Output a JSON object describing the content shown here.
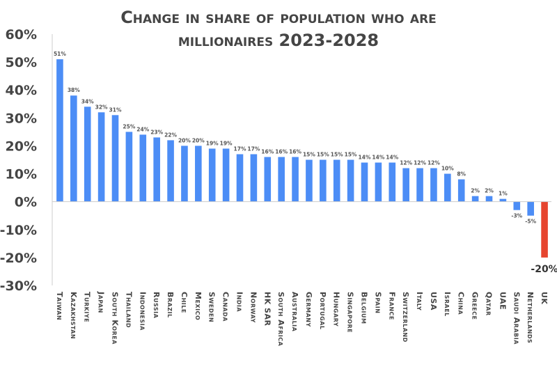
{
  "chart_data": {
    "type": "bar",
    "title_lines": [
      "Change in share of population who are",
      "millionaires 2023-2028"
    ],
    "xlabel": "",
    "ylabel": "",
    "ylim": [
      -30,
      60
    ],
    "yticks": [
      60,
      50,
      40,
      30,
      20,
      10,
      0,
      -10,
      -20,
      -30
    ],
    "ytick_labels": [
      "60%",
      "50%",
      "40%",
      "30%",
      "20%",
      "10%",
      "0%",
      "-10%",
      "-20%",
      "-30%"
    ],
    "grid": false,
    "legend": "none",
    "colors": {
      "default": "#4c8df6",
      "highlight": "#e6452f",
      "axis": "#cccccc",
      "text": "#454545"
    },
    "highlight_category": "UK",
    "categories": [
      "Taiwan",
      "Kazakhstan",
      "Turkiye",
      "Japan",
      "South Korea",
      "Thailand",
      "Indonesia",
      "Russia",
      "Brazil",
      "Chile",
      "Mexico",
      "Sweden",
      "Canada",
      "India",
      "Norway",
      "HK SAR",
      "South Africa",
      "Australia",
      "Germany",
      "Portugal",
      "Hungary",
      "Singapore",
      "Belgium",
      "Spain",
      "France",
      "Switzerland",
      "Italy",
      "USA",
      "Israel",
      "China",
      "Greece",
      "Qatar",
      "UAE",
      "Saudi Arabia",
      "Netherlands",
      "UK"
    ],
    "values": [
      51,
      38,
      34,
      32,
      31,
      25,
      24,
      23,
      22,
      20,
      20,
      19,
      19,
      17,
      17,
      16,
      16,
      16,
      15,
      15,
      15,
      15,
      14,
      14,
      14,
      12,
      12,
      12,
      10,
      8,
      2,
      2,
      1,
      -3,
      -5,
      -20
    ],
    "data_labels": [
      "51%",
      "38%",
      "34%",
      "32%",
      "31%",
      "25%",
      "24%",
      "23%",
      "22%",
      "20%",
      "20%",
      "19%",
      "19%",
      "17%",
      "17%",
      "16%",
      "16%",
      "16%",
      "15%",
      "15%",
      "15%",
      "15%",
      "14%",
      "14%",
      "14%",
      "12%",
      "12%",
      "12%",
      "10%",
      "8%",
      "2%",
      "2%",
      "1%",
      "-3%",
      "-5%",
      "-20%"
    ]
  }
}
